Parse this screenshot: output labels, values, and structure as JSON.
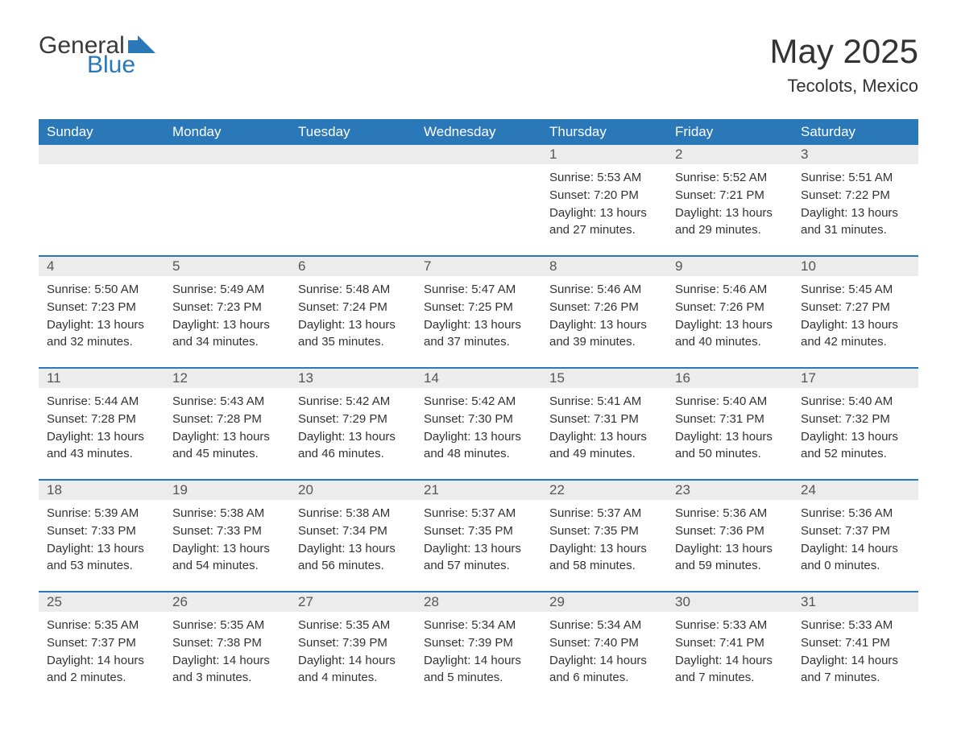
{
  "logo": {
    "general": "General",
    "blue": "Blue"
  },
  "title": "May 2025",
  "location": "Tecolots, Mexico",
  "colors": {
    "header_bg": "#2a78b8",
    "header_fg": "#ffffff",
    "date_strip_bg": "#ececec",
    "text": "#333333",
    "rule": "#2a78b8"
  },
  "day_names": [
    "Sunday",
    "Monday",
    "Tuesday",
    "Wednesday",
    "Thursday",
    "Friday",
    "Saturday"
  ],
  "weeks": [
    [
      null,
      null,
      null,
      null,
      {
        "date": "1",
        "sunrise": "Sunrise: 5:53 AM",
        "sunset": "Sunset: 7:20 PM",
        "daylight1": "Daylight: 13 hours",
        "daylight2": "and 27 minutes."
      },
      {
        "date": "2",
        "sunrise": "Sunrise: 5:52 AM",
        "sunset": "Sunset: 7:21 PM",
        "daylight1": "Daylight: 13 hours",
        "daylight2": "and 29 minutes."
      },
      {
        "date": "3",
        "sunrise": "Sunrise: 5:51 AM",
        "sunset": "Sunset: 7:22 PM",
        "daylight1": "Daylight: 13 hours",
        "daylight2": "and 31 minutes."
      }
    ],
    [
      {
        "date": "4",
        "sunrise": "Sunrise: 5:50 AM",
        "sunset": "Sunset: 7:23 PM",
        "daylight1": "Daylight: 13 hours",
        "daylight2": "and 32 minutes."
      },
      {
        "date": "5",
        "sunrise": "Sunrise: 5:49 AM",
        "sunset": "Sunset: 7:23 PM",
        "daylight1": "Daylight: 13 hours",
        "daylight2": "and 34 minutes."
      },
      {
        "date": "6",
        "sunrise": "Sunrise: 5:48 AM",
        "sunset": "Sunset: 7:24 PM",
        "daylight1": "Daylight: 13 hours",
        "daylight2": "and 35 minutes."
      },
      {
        "date": "7",
        "sunrise": "Sunrise: 5:47 AM",
        "sunset": "Sunset: 7:25 PM",
        "daylight1": "Daylight: 13 hours",
        "daylight2": "and 37 minutes."
      },
      {
        "date": "8",
        "sunrise": "Sunrise: 5:46 AM",
        "sunset": "Sunset: 7:26 PM",
        "daylight1": "Daylight: 13 hours",
        "daylight2": "and 39 minutes."
      },
      {
        "date": "9",
        "sunrise": "Sunrise: 5:46 AM",
        "sunset": "Sunset: 7:26 PM",
        "daylight1": "Daylight: 13 hours",
        "daylight2": "and 40 minutes."
      },
      {
        "date": "10",
        "sunrise": "Sunrise: 5:45 AM",
        "sunset": "Sunset: 7:27 PM",
        "daylight1": "Daylight: 13 hours",
        "daylight2": "and 42 minutes."
      }
    ],
    [
      {
        "date": "11",
        "sunrise": "Sunrise: 5:44 AM",
        "sunset": "Sunset: 7:28 PM",
        "daylight1": "Daylight: 13 hours",
        "daylight2": "and 43 minutes."
      },
      {
        "date": "12",
        "sunrise": "Sunrise: 5:43 AM",
        "sunset": "Sunset: 7:28 PM",
        "daylight1": "Daylight: 13 hours",
        "daylight2": "and 45 minutes."
      },
      {
        "date": "13",
        "sunrise": "Sunrise: 5:42 AM",
        "sunset": "Sunset: 7:29 PM",
        "daylight1": "Daylight: 13 hours",
        "daylight2": "and 46 minutes."
      },
      {
        "date": "14",
        "sunrise": "Sunrise: 5:42 AM",
        "sunset": "Sunset: 7:30 PM",
        "daylight1": "Daylight: 13 hours",
        "daylight2": "and 48 minutes."
      },
      {
        "date": "15",
        "sunrise": "Sunrise: 5:41 AM",
        "sunset": "Sunset: 7:31 PM",
        "daylight1": "Daylight: 13 hours",
        "daylight2": "and 49 minutes."
      },
      {
        "date": "16",
        "sunrise": "Sunrise: 5:40 AM",
        "sunset": "Sunset: 7:31 PM",
        "daylight1": "Daylight: 13 hours",
        "daylight2": "and 50 minutes."
      },
      {
        "date": "17",
        "sunrise": "Sunrise: 5:40 AM",
        "sunset": "Sunset: 7:32 PM",
        "daylight1": "Daylight: 13 hours",
        "daylight2": "and 52 minutes."
      }
    ],
    [
      {
        "date": "18",
        "sunrise": "Sunrise: 5:39 AM",
        "sunset": "Sunset: 7:33 PM",
        "daylight1": "Daylight: 13 hours",
        "daylight2": "and 53 minutes."
      },
      {
        "date": "19",
        "sunrise": "Sunrise: 5:38 AM",
        "sunset": "Sunset: 7:33 PM",
        "daylight1": "Daylight: 13 hours",
        "daylight2": "and 54 minutes."
      },
      {
        "date": "20",
        "sunrise": "Sunrise: 5:38 AM",
        "sunset": "Sunset: 7:34 PM",
        "daylight1": "Daylight: 13 hours",
        "daylight2": "and 56 minutes."
      },
      {
        "date": "21",
        "sunrise": "Sunrise: 5:37 AM",
        "sunset": "Sunset: 7:35 PM",
        "daylight1": "Daylight: 13 hours",
        "daylight2": "and 57 minutes."
      },
      {
        "date": "22",
        "sunrise": "Sunrise: 5:37 AM",
        "sunset": "Sunset: 7:35 PM",
        "daylight1": "Daylight: 13 hours",
        "daylight2": "and 58 minutes."
      },
      {
        "date": "23",
        "sunrise": "Sunrise: 5:36 AM",
        "sunset": "Sunset: 7:36 PM",
        "daylight1": "Daylight: 13 hours",
        "daylight2": "and 59 minutes."
      },
      {
        "date": "24",
        "sunrise": "Sunrise: 5:36 AM",
        "sunset": "Sunset: 7:37 PM",
        "daylight1": "Daylight: 14 hours",
        "daylight2": "and 0 minutes."
      }
    ],
    [
      {
        "date": "25",
        "sunrise": "Sunrise: 5:35 AM",
        "sunset": "Sunset: 7:37 PM",
        "daylight1": "Daylight: 14 hours",
        "daylight2": "and 2 minutes."
      },
      {
        "date": "26",
        "sunrise": "Sunrise: 5:35 AM",
        "sunset": "Sunset: 7:38 PM",
        "daylight1": "Daylight: 14 hours",
        "daylight2": "and 3 minutes."
      },
      {
        "date": "27",
        "sunrise": "Sunrise: 5:35 AM",
        "sunset": "Sunset: 7:39 PM",
        "daylight1": "Daylight: 14 hours",
        "daylight2": "and 4 minutes."
      },
      {
        "date": "28",
        "sunrise": "Sunrise: 5:34 AM",
        "sunset": "Sunset: 7:39 PM",
        "daylight1": "Daylight: 14 hours",
        "daylight2": "and 5 minutes."
      },
      {
        "date": "29",
        "sunrise": "Sunrise: 5:34 AM",
        "sunset": "Sunset: 7:40 PM",
        "daylight1": "Daylight: 14 hours",
        "daylight2": "and 6 minutes."
      },
      {
        "date": "30",
        "sunrise": "Sunrise: 5:33 AM",
        "sunset": "Sunset: 7:41 PM",
        "daylight1": "Daylight: 14 hours",
        "daylight2": "and 7 minutes."
      },
      {
        "date": "31",
        "sunrise": "Sunrise: 5:33 AM",
        "sunset": "Sunset: 7:41 PM",
        "daylight1": "Daylight: 14 hours",
        "daylight2": "and 7 minutes."
      }
    ]
  ]
}
